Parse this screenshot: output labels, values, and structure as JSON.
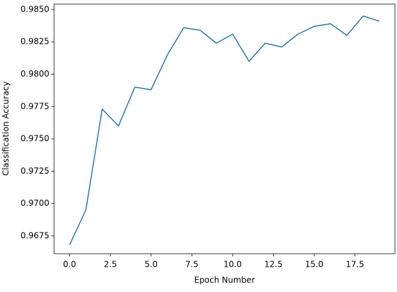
{
  "chart_data": {
    "type": "line",
    "x_label": "Epoch Number",
    "y_label": "Classification Accuracy",
    "x": [
      0,
      1,
      2,
      3,
      4,
      5,
      6,
      7,
      8,
      9,
      10,
      11,
      12,
      13,
      14,
      15,
      16,
      17,
      18,
      19
    ],
    "series": [
      {
        "color": "#1f77b4",
        "values": [
          0.9668,
          0.9695,
          0.9773,
          0.976,
          0.979,
          0.9788,
          0.9815,
          0.9836,
          0.9834,
          0.9824,
          0.9831,
          0.981,
          0.9824,
          0.9821,
          0.9831,
          0.9837,
          0.9839,
          0.983,
          0.9845,
          0.9841
        ]
      }
    ],
    "xlim": [
      -0.95,
      19.95
    ],
    "xticks": [
      {
        "value": 0,
        "label": "0.0"
      },
      {
        "value": 2.5,
        "label": "2.5"
      },
      {
        "value": 5,
        "label": "5.0"
      },
      {
        "value": 7.5,
        "label": "7.5"
      },
      {
        "value": 10,
        "label": "10.0"
      },
      {
        "value": 12.5,
        "label": "12.5"
      },
      {
        "value": 15,
        "label": "15.0"
      },
      {
        "value": 17.5,
        "label": "17.5"
      }
    ],
    "ylim": [
      0.96612,
      0.98542
    ],
    "yticks": [
      {
        "value": 0.9675,
        "label": "0.9675"
      },
      {
        "value": 0.97,
        "label": "0.9700"
      },
      {
        "value": 0.9725,
        "label": "0.9725"
      },
      {
        "value": 0.975,
        "label": "0.9750"
      },
      {
        "value": 0.9775,
        "label": "0.9775"
      },
      {
        "value": 0.98,
        "label": "0.9800"
      },
      {
        "value": 0.9825,
        "label": "0.9825"
      },
      {
        "value": 0.985,
        "label": "0.9850"
      }
    ],
    "grid": false
  }
}
